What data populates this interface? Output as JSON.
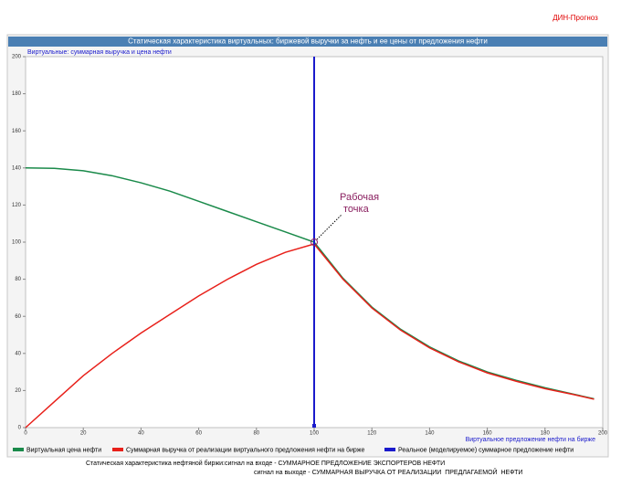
{
  "brand": "ДИН-Прогноз",
  "chart_data": {
    "type": "line",
    "title": "Статическая характеристика виртуальных: биржевой выручки за нефть и ее цены от предложения нефти",
    "ylabel": "Виртуальные: суммарная выручка и цена нефти",
    "xlabel": "Виртуальное предложение нефти на бирже",
    "x": [
      0,
      10,
      20,
      30,
      40,
      50,
      60,
      70,
      80,
      90,
      100,
      110,
      120,
      130,
      140,
      150,
      160,
      170,
      180,
      190,
      197
    ],
    "series": [
      {
        "name": "Виртуальная цена нефти",
        "color": "#1a8a4a",
        "values": [
          140,
          139.8,
          138.5,
          135.8,
          132,
          127.5,
          122,
          116.5,
          111,
          105.5,
          100,
          80.5,
          65,
          53,
          43.5,
          36,
          30,
          25.5,
          21.5,
          18,
          15.5
        ]
      },
      {
        "name": "Суммарная выручка от реализации виртуального предложения нефти на бирже",
        "color": "#e8201a",
        "values": [
          0,
          14,
          28,
          40,
          51,
          61,
          71,
          80,
          88,
          94.5,
          99,
          80,
          64.5,
          52.5,
          43,
          35.5,
          29.5,
          25,
          21,
          17.8,
          15.3
        ]
      }
    ],
    "vline": {
      "name": "Реальное (моделируемое) суммарное предложение нефти",
      "color": "#1a1acc",
      "x": 100
    },
    "annotation": {
      "lines": [
        "Рабочая",
        "точка"
      ],
      "x": 100,
      "y": 100,
      "color": "#8a2060"
    },
    "xlim": [
      0,
      200
    ],
    "ylim": [
      0,
      200
    ],
    "xticks": [
      0,
      20,
      40,
      60,
      80,
      100,
      120,
      140,
      160,
      180,
      200
    ],
    "yticks": [
      0,
      20,
      40,
      60,
      80,
      100,
      120,
      140,
      160,
      180,
      200
    ]
  },
  "caption": [
    "Статическая характеристика нефтяной биржи:сигнал на входе - СУММАРНОЕ ПРЕДЛОЖЕНИЕ ЭКСПОРТЕРОВ НЕФТИ",
    "сигнал на выходе - СУММАРНАЯ ВЫРУЧКА ОТ РЕАЛИЗАЦИИ  ПРЕДЛАГАЕМОЙ  НЕФТИ"
  ]
}
